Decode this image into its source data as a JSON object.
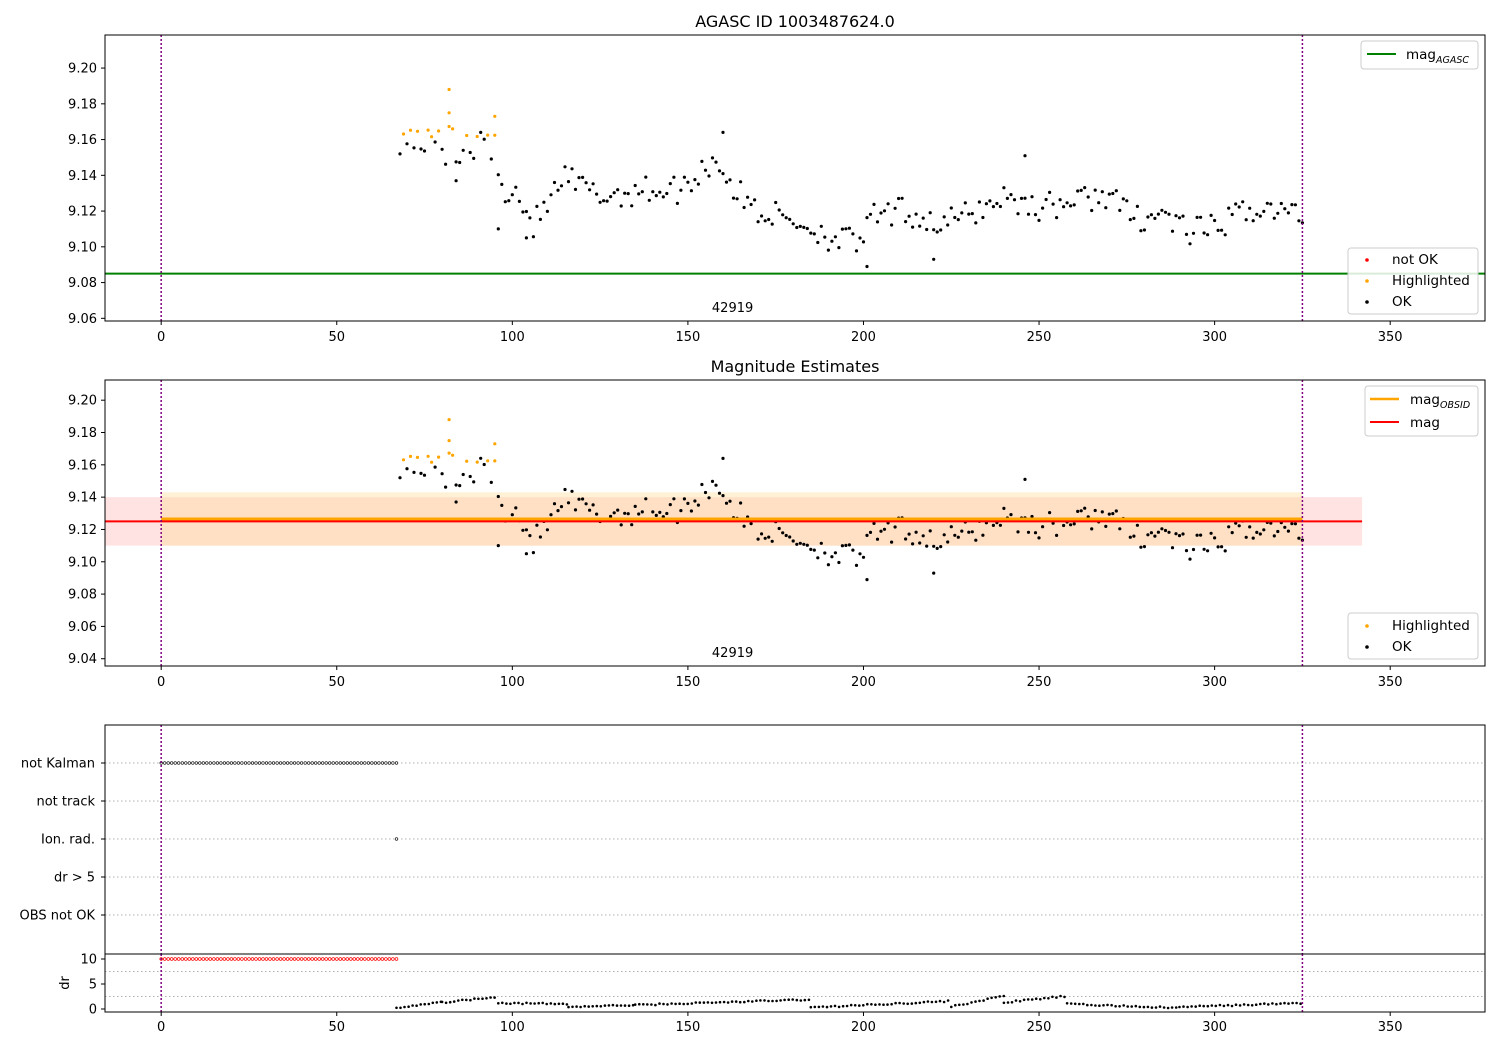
{
  "colors": {
    "ok": "#000000",
    "highlighted": "#ffa500",
    "not_ok": "#ff0000",
    "mag_agasc_line": "#008000",
    "mag_obsid_line": "#ffa500",
    "mag_line": "#ff0000",
    "obsid_band": "#ffdd99",
    "mag_band": "#ff9999",
    "vline": "#800080",
    "grid": "#b0b0b0"
  },
  "chart_data": [
    {
      "id": "agasc",
      "type": "scatter",
      "title": "AGASC ID 1003487624.0",
      "xlim": [
        -16,
        377
      ],
      "ylim": [
        9.0585,
        9.2185
      ],
      "xticks": [
        0,
        50,
        100,
        150,
        200,
        250,
        300,
        350
      ],
      "yticks": [
        9.06,
        9.08,
        9.1,
        9.12,
        9.14,
        9.16,
        9.18,
        9.2
      ],
      "hlines": [
        {
          "label": "mag",
          "sub": "AGASC",
          "y": 9.085,
          "color": "#008000"
        }
      ],
      "vlines": [
        0,
        325
      ],
      "annotation": {
        "text": "42919",
        "x": 162.5
      },
      "legends": {
        "top": [
          {
            "label": "mag",
            "sub": "AGASC",
            "kind": "line",
            "color": "#008000"
          }
        ],
        "bottom": [
          {
            "label": "not OK",
            "kind": "dot",
            "color": "#ff0000"
          },
          {
            "label": "Highlighted",
            "kind": "dot",
            "color": "#ffa500"
          },
          {
            "label": "OK",
            "kind": "dot",
            "color": "#000000"
          }
        ]
      }
    },
    {
      "id": "estimates",
      "type": "scatter",
      "title": "Magnitude Estimates",
      "xlim": [
        -16,
        377
      ],
      "ylim": [
        9.0355,
        9.2125
      ],
      "xticks": [
        0,
        50,
        100,
        150,
        200,
        250,
        300,
        350
      ],
      "yticks": [
        9.04,
        9.06,
        9.08,
        9.1,
        9.12,
        9.14,
        9.16,
        9.18,
        9.2
      ],
      "bands": [
        {
          "x": [
            -16,
            342
          ],
          "y": [
            9.11,
            9.14
          ],
          "color": "#ff9999",
          "opacity": 0.28
        },
        {
          "x": [
            0,
            325
          ],
          "y": [
            9.11,
            9.143
          ],
          "color": "#ffdd99",
          "opacity": 0.4
        }
      ],
      "hlines": [
        {
          "label": "mag",
          "sub": "OBSID",
          "y": 9.1265,
          "x": [
            0,
            325
          ],
          "color": "#ffa500"
        },
        {
          "label": "mag",
          "y": 9.125,
          "x": [
            -16,
            342
          ],
          "color": "#ff0000"
        }
      ],
      "vlines": [
        0,
        325
      ],
      "annotation": {
        "text": "42919",
        "x": 162.5
      },
      "legends": {
        "top": [
          {
            "label": "mag",
            "sub": "OBSID",
            "kind": "line",
            "color": "#ffa500"
          },
          {
            "label": "mag",
            "kind": "line",
            "color": "#ff0000"
          }
        ],
        "bottom": [
          {
            "label": "Highlighted",
            "kind": "dot",
            "color": "#ffa500"
          },
          {
            "label": "OK",
            "kind": "dot",
            "color": "#000000"
          }
        ]
      }
    },
    {
      "id": "flags",
      "type": "scatter",
      "xlim": [
        -16,
        377
      ],
      "categories": [
        "not Kalman",
        "not track",
        "Ion. rad.",
        "dr > 5",
        "OBS not OK"
      ],
      "vlines": [
        0,
        325
      ],
      "series": [
        {
          "category": "not Kalman",
          "x_range": [
            0,
            67
          ],
          "count": 68
        },
        {
          "category": "Ion. rad.",
          "x": [
            67
          ]
        }
      ]
    },
    {
      "id": "dr",
      "type": "scatter",
      "xlim": [
        -16,
        377
      ],
      "ylim": [
        -0.6,
        11
      ],
      "ylabel": "dr",
      "yticks": [
        0,
        5,
        10
      ],
      "xticks": [
        0,
        50,
        100,
        150,
        200,
        250,
        300,
        350
      ],
      "vlines": [
        0,
        325
      ],
      "series": [
        {
          "name": "capped",
          "x_range": [
            0,
            67
          ],
          "y": 10,
          "color": "#ff0000"
        },
        {
          "name": "dr",
          "x_range": [
            67,
            325
          ],
          "color": "#000000",
          "approx_y": {
            "x67_80": [
              0.2,
              1.5
            ],
            "x80_96": [
              1.3,
              2.5
            ],
            "x96_116": [
              1.2,
              1.0
            ],
            "x116_135": [
              0.4,
              0.8
            ],
            "x135_185": [
              0.8,
              1.9
            ],
            "x185_225": [
              0.3,
              1.6
            ],
            "x225_240": [
              0.5,
              2.6
            ],
            "x240_258": [
              1.3,
              2.6
            ],
            "x258_290": [
              1.0,
              0.2
            ],
            "x290_325": [
              0.4,
              1.2
            ]
          }
        }
      ]
    }
  ]
}
